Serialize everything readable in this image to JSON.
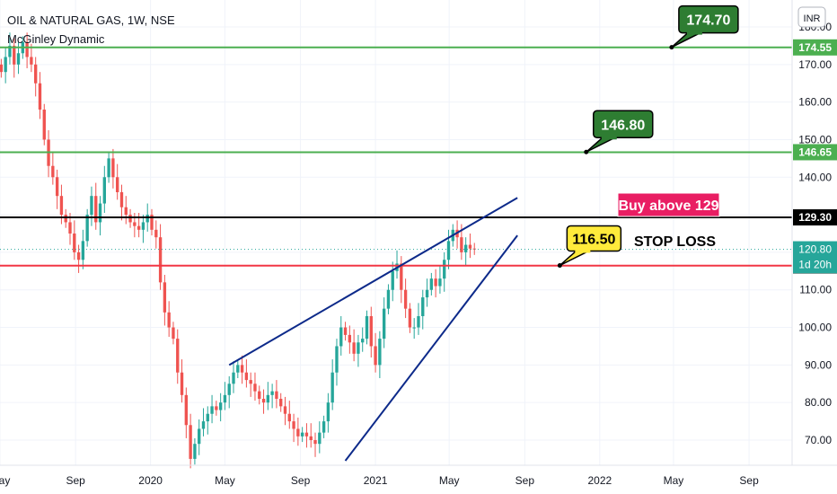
{
  "header": {
    "title": "OIL & NATURAL GAS, 1W, NSE",
    "indicator": "McGinley Dynamic",
    "currency": "INR"
  },
  "colors": {
    "up": "#26a69a",
    "down": "#ef5350",
    "green_line": "#4caf50",
    "red_line": "#f23645",
    "black_line": "#000000",
    "trend_line": "#0d2a8a",
    "green_callout": "#2e7d32",
    "yellow_callout": "#ffeb3b",
    "pink_label": "#e91e63",
    "price_tag": "#26a69a"
  },
  "chart_data": {
    "type": "candlestick",
    "timeframe": "1W",
    "x_range": [
      "2019-05-01",
      "2022-11-10"
    ],
    "ylim": [
      65,
      182
    ],
    "y_ticks": [
      70,
      80,
      90,
      100,
      110,
      120,
      130,
      140,
      150,
      160,
      170,
      180
    ],
    "x_ticks": [
      {
        "date": "2019-05-01",
        "label": "May"
      },
      {
        "date": "2019-09-01",
        "label": "Sep"
      },
      {
        "date": "2020-01-01",
        "label": "2020"
      },
      {
        "date": "2020-05-01",
        "label": "May"
      },
      {
        "date": "2020-09-01",
        "label": "Sep"
      },
      {
        "date": "2021-01-01",
        "label": "2021"
      },
      {
        "date": "2021-05-01",
        "label": "May"
      },
      {
        "date": "2021-09-01",
        "label": "Sep"
      },
      {
        "date": "2022-01-01",
        "label": "2022"
      },
      {
        "date": "2022-05-01",
        "label": "May"
      },
      {
        "date": "2022-09-01",
        "label": "Sep"
      }
    ],
    "candles_start": "2019-05-03",
    "closes": [
      168,
      172,
      175,
      170,
      173,
      176,
      172,
      170,
      165,
      158,
      150,
      143,
      140,
      135,
      130,
      128,
      125,
      120,
      118,
      123,
      130,
      135,
      128,
      133,
      140,
      145,
      140,
      136,
      132,
      130,
      128,
      127,
      126,
      128,
      130,
      126,
      124,
      112,
      104,
      100,
      97,
      88,
      82,
      74,
      65,
      69,
      73,
      75,
      77,
      79,
      78,
      80,
      82,
      85,
      88,
      90,
      88,
      86,
      85,
      83,
      81,
      80,
      82,
      83,
      81,
      79,
      77,
      75,
      73,
      71,
      72,
      71,
      70,
      69,
      72,
      75,
      80,
      88,
      95,
      100,
      98,
      96,
      93,
      96,
      97,
      103,
      95,
      90,
      97,
      105,
      110,
      115,
      117,
      110,
      105,
      100,
      100,
      103,
      108,
      110,
      113,
      111,
      113,
      118,
      123,
      126,
      124,
      120,
      122,
      121,
      120.8
    ],
    "horizontal_levels": [
      {
        "value": 174.55,
        "label": "174.55",
        "style": "green"
      },
      {
        "value": 146.65,
        "label": "146.65",
        "style": "green"
      },
      {
        "value": 129.3,
        "label": "129.30",
        "style": "black"
      },
      {
        "value": 116.45,
        "label": "116.45",
        "style": "red"
      }
    ],
    "last_price": {
      "value": 120.8,
      "label": "120.80",
      "countdown": "1d 20h"
    },
    "trendlines": [
      {
        "from": {
          "date": "2020-05-08",
          "value": 90.0
        },
        "to": {
          "date": "2021-08-20",
          "value": 134.5
        }
      },
      {
        "from": {
          "date": "2020-11-13",
          "value": 64.5
        },
        "to": {
          "date": "2021-08-20",
          "value": 124.5
        }
      }
    ],
    "callouts": [
      {
        "text": "174.70",
        "point": {
          "date": "2022-04-28",
          "value": 174.6
        },
        "style": "green"
      },
      {
        "text": "146.80",
        "point": {
          "date": "2021-12-10",
          "value": 146.7
        },
        "style": "green"
      },
      {
        "text": "116.50",
        "point": {
          "date": "2021-10-28",
          "value": 116.5
        },
        "style": "yellow"
      }
    ],
    "annotations": [
      {
        "text": "Buy above 129",
        "style": "pink"
      },
      {
        "text": "STOP LOSS",
        "style": "plain"
      }
    ]
  }
}
